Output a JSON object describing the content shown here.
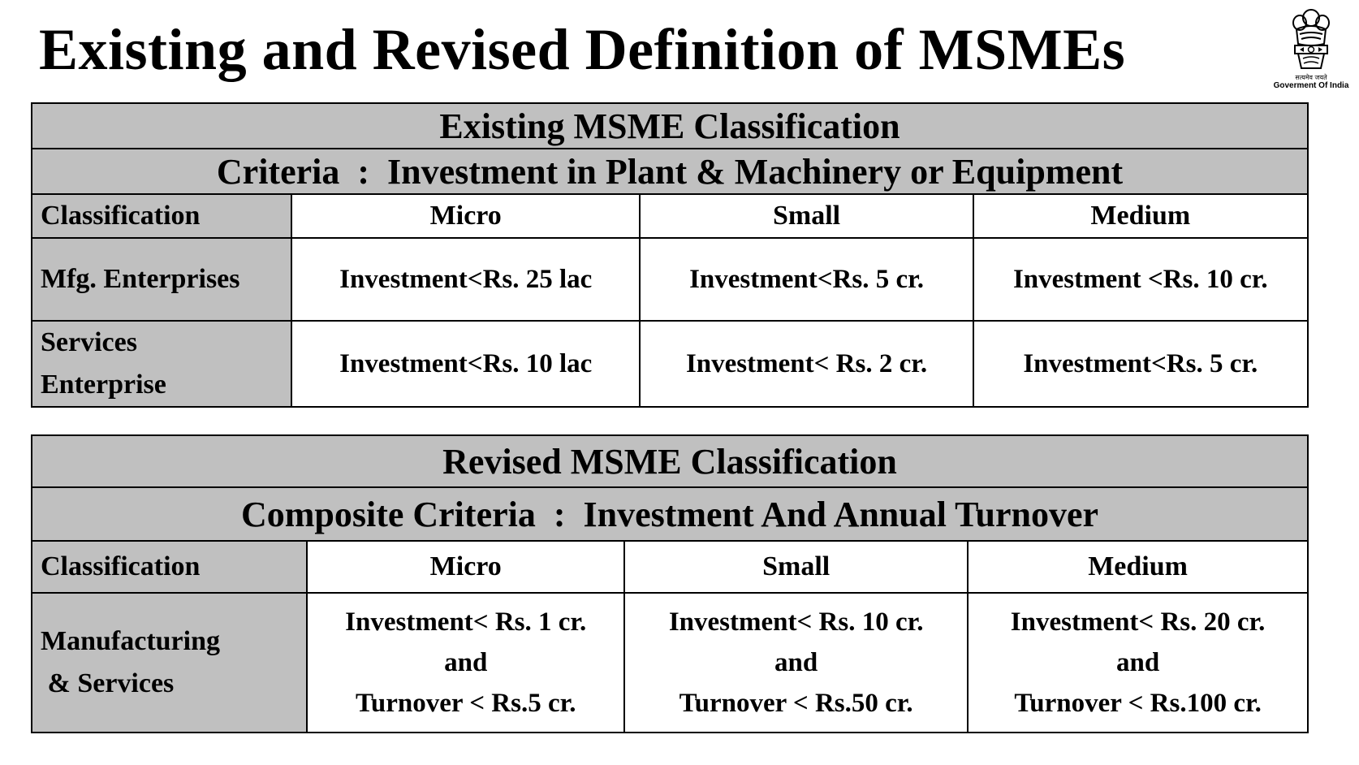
{
  "page": {
    "title": "Existing and Revised Definition of MSMEs"
  },
  "emblem": {
    "icon": "national-emblem-icon",
    "motto": "सत्यमेव जयते",
    "caption": "Goverment Of India"
  },
  "existing": {
    "heading": "Existing MSME Classification",
    "criteria": "Criteria  :  Investment in Plant & Machinery or Equipment",
    "headers": [
      "Classification",
      "Micro",
      "Small",
      "Medium"
    ],
    "rows": [
      {
        "label": [
          "Mfg. Enterprises"
        ],
        "cells": [
          "Investment<Rs. 25 lac",
          "Investment<Rs. 5 cr.",
          "Investment <Rs. 10 cr."
        ]
      },
      {
        "label": [
          "Services",
          "Enterprise"
        ],
        "cells": [
          "Investment<Rs. 10 lac",
          "Investment< Rs. 2 cr.",
          "Investment<Rs. 5 cr."
        ]
      }
    ]
  },
  "revised": {
    "heading": "Revised MSME Classification",
    "criteria": "Composite Criteria  :  Investment And Annual Turnover",
    "headers": [
      "Classification",
      "Micro",
      "Small",
      "Medium"
    ],
    "row": {
      "label": [
        "Manufacturing",
        " & Services"
      ],
      "cells": [
        [
          "Investment< Rs. 1 cr.",
          "and",
          "Turnover < Rs.5 cr."
        ],
        [
          "Investment< Rs. 10 cr.",
          "and",
          "Turnover < Rs.50 cr."
        ],
        [
          "Investment< Rs. 20 cr.",
          "and",
          "Turnover < Rs.100 cr."
        ]
      ]
    }
  }
}
